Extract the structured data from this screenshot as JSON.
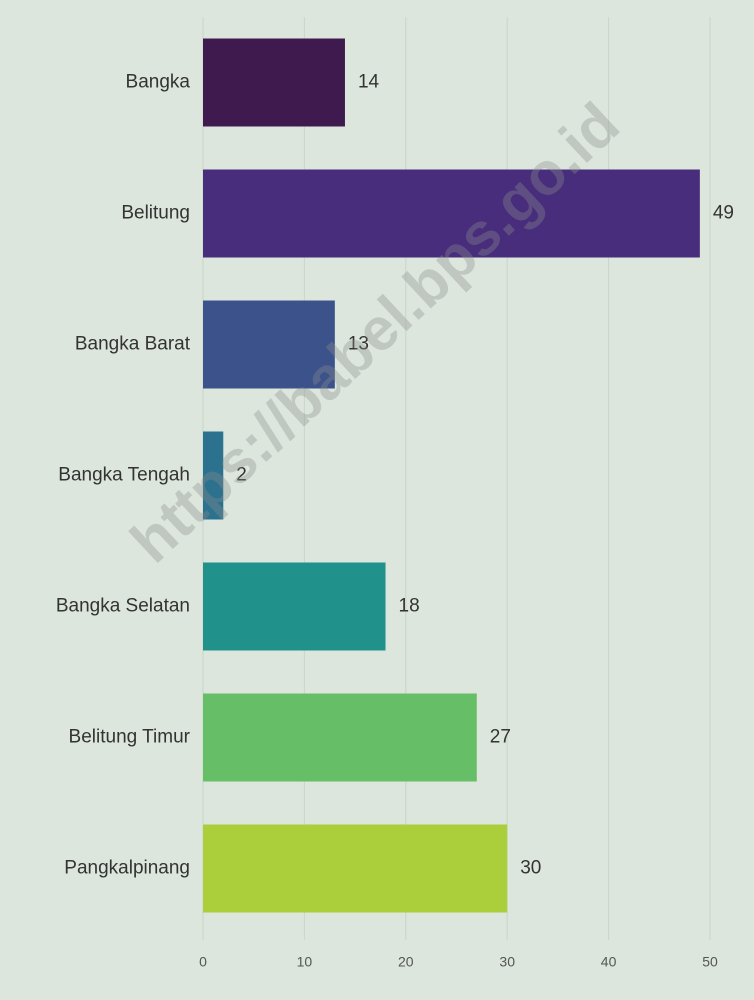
{
  "chart_data": {
    "type": "bar",
    "orientation": "horizontal",
    "categories": [
      "Bangka",
      "Belitung",
      "Bangka Barat",
      "Bangka Tengah",
      "Bangka Selatan",
      "Belitung Timur",
      "Pangkalpinang"
    ],
    "values": [
      14,
      49,
      13,
      2,
      18,
      27,
      30
    ],
    "colors": [
      "#3f1a4f",
      "#472d7b",
      "#3b528b",
      "#2c728e",
      "#21918c",
      "#66bf66",
      "#aacf3a"
    ],
    "xlim": [
      0,
      50
    ],
    "xticks": [
      0,
      10,
      20,
      30,
      40,
      50
    ],
    "grid": true,
    "watermark": "https://babel.bps.go.id"
  }
}
